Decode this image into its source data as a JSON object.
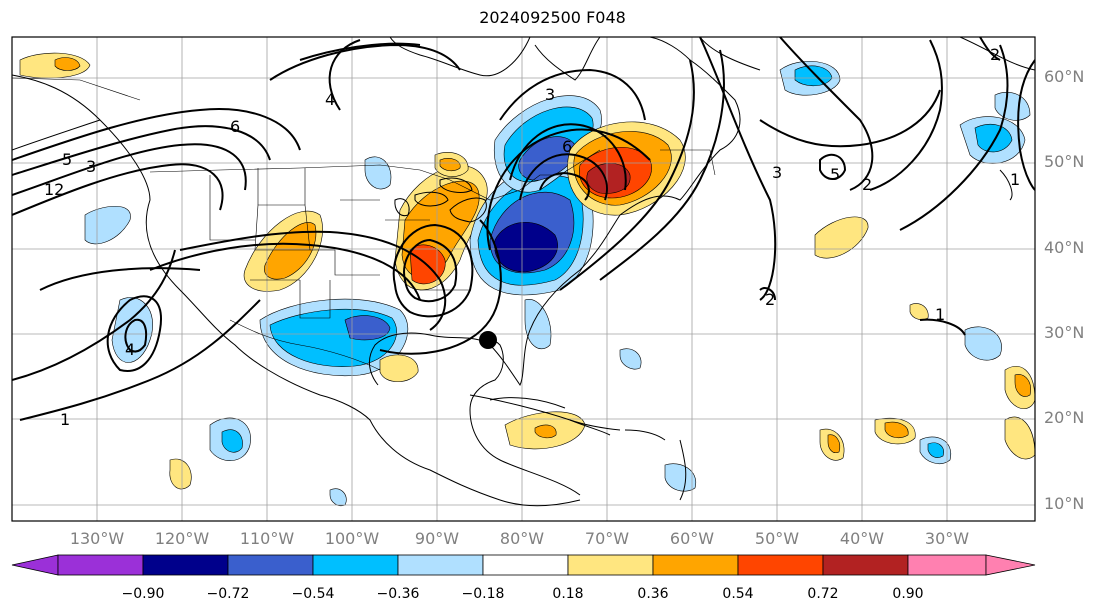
{
  "title": "2024092500 F048",
  "lat_labels": [
    "60°N",
    "50°N",
    "40°N",
    "30°N",
    "20°N",
    "10°N"
  ],
  "lon_labels": [
    "130°W",
    "120°W",
    "110°W",
    "100°W",
    "90°W",
    "80°W",
    "70°W",
    "60°W",
    "50°W",
    "40°W",
    "30°W"
  ],
  "colorbar": {
    "ticks": [
      "−0.90",
      "−0.72",
      "−0.54",
      "−0.36",
      "−0.18",
      "0.18",
      "0.36",
      "0.54",
      "0.72",
      "0.90"
    ],
    "colors": [
      "#9b30d8",
      "#00008b",
      "#3a5fcd",
      "#00bfff",
      "#b0e0ff",
      "#ffffff",
      "#ffe680",
      "#ffa500",
      "#ff4500",
      "#b22222",
      "#ff80b0"
    ]
  },
  "contour_labels": [
    "6",
    "5",
    "3",
    "12",
    "4",
    "6",
    "3",
    "2",
    "1",
    "1",
    "2",
    "4",
    "3",
    "2",
    "1",
    "5"
  ],
  "storm_marker": "circle"
}
